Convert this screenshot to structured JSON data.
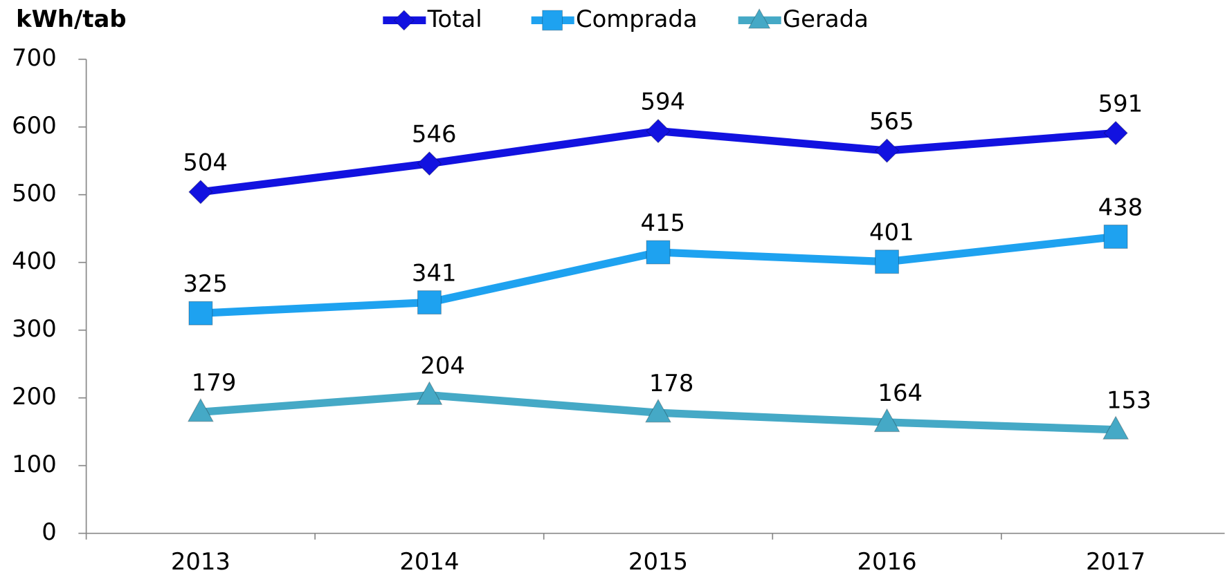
{
  "chart_data": {
    "type": "line",
    "y_label": "kWh/tab",
    "categories": [
      "2013",
      "2014",
      "2015",
      "2016",
      "2017"
    ],
    "series": [
      {
        "name": "Total",
        "color": "#1212e0",
        "marker": "diamond",
        "values": [
          504,
          546,
          594,
          565,
          591
        ]
      },
      {
        "name": "Comprada",
        "color": "#1ea2f0",
        "marker": "square",
        "values": [
          325,
          341,
          415,
          401,
          438
        ]
      },
      {
        "name": "Gerada",
        "color": "#45a9c6",
        "marker": "triangle",
        "values": [
          179,
          204,
          178,
          164,
          153
        ]
      }
    ],
    "ylim": [
      0,
      700
    ],
    "yticks": [
      0,
      100,
      200,
      300,
      400,
      500,
      600,
      700
    ],
    "grid": false,
    "legend": "top"
  }
}
